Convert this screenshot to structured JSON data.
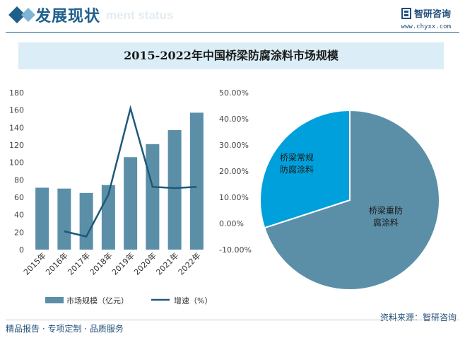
{
  "header": {
    "title": "发展现状",
    "watermark": "ment status",
    "brand_name": "智研咨询",
    "brand_url": "www.chyxx.com"
  },
  "footer": {
    "left": "精品报告 · 专项定制 · 品质服务",
    "right": "资料来源：智研咨询"
  },
  "colors": {
    "bar": "#5b8fa8",
    "line": "#1d5a79",
    "pie_large": "#5b8fa8",
    "pie_small": "#00a0dc"
  },
  "chart_data": [
    {
      "type": "bar",
      "title": "2015-2022年中国桥梁防腐涂料市场规模",
      "categories": [
        "2015年",
        "2016年",
        "2017年",
        "2018年",
        "2019年",
        "2020年",
        "2021年",
        "2022年"
      ],
      "series": [
        {
          "name": "市场规模（亿元）",
          "type": "bar",
          "axis": "left",
          "values": [
            71,
            70,
            65,
            74,
            106,
            121,
            137,
            157
          ]
        },
        {
          "name": "增速（%）",
          "type": "line",
          "axis": "right",
          "values": [
            null,
            -3.0,
            -5.0,
            11.0,
            44.0,
            14.0,
            13.5,
            14.0
          ]
        }
      ],
      "y_left": {
        "min": 0,
        "max": 180,
        "ticks": [
          "0",
          "20",
          "40",
          "60",
          "80",
          "100",
          "120",
          "140",
          "160",
          "180"
        ]
      },
      "y_right": {
        "min": -10,
        "max": 50,
        "ticks": [
          "-10.00%",
          "0.00%",
          "10.00%",
          "20.00%",
          "30.00%",
          "40.00%",
          "50.00%"
        ]
      },
      "legend": "bottom"
    },
    {
      "type": "pie",
      "slices": [
        {
          "label": "桥梁重防腐涂料",
          "value": 70
        },
        {
          "label": "桥梁常规防腐涂料",
          "value": 30
        }
      ]
    }
  ]
}
